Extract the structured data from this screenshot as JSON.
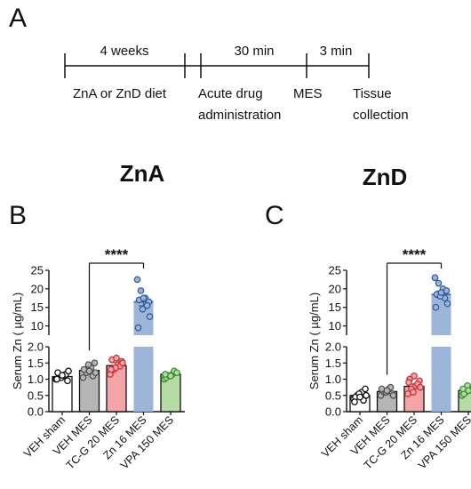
{
  "panel_labels": {
    "a": "A",
    "b": "B",
    "c": "C"
  },
  "timeline": {
    "segments": [
      {
        "duration": "4 weeks",
        "label": "ZnA or ZnD diet"
      },
      {
        "duration": "30 min",
        "label_lines": [
          "Acute drug",
          "administration"
        ]
      },
      {
        "duration": "3 min",
        "label": "MES"
      }
    ],
    "end_label_lines": [
      "Tissue",
      "collection"
    ]
  },
  "chart_data": [
    {
      "type": "bar",
      "title": "ZnA",
      "ylabel": "Serum Zn ( µg/mL)",
      "categories": [
        "VEH sham",
        "VEH MES",
        "TC-G 20 MES",
        "Zn 16 MES",
        "VPA 150 MES"
      ],
      "values": [
        1.08,
        1.27,
        1.42,
        16.5,
        1.15
      ],
      "errors": [
        0.05,
        0.08,
        0.09,
        1.1,
        0.05
      ],
      "points": [
        [
          1.0,
          1.05,
          1.1,
          0.95,
          1.2,
          1.15,
          1.05,
          1.25,
          1.0,
          1.12
        ],
        [
          1.05,
          1.2,
          1.35,
          1.5,
          1.3,
          1.1,
          1.45,
          1.2,
          1.3,
          1.25
        ],
        [
          1.15,
          1.3,
          1.45,
          1.55,
          1.6,
          1.4,
          1.35,
          1.5,
          1.3,
          1.65
        ],
        [
          22.5,
          19.5,
          17.5,
          16.5,
          17.0,
          15.5,
          14.5,
          12.5,
          9.5,
          17.5
        ],
        [
          1.0,
          1.1,
          1.15,
          1.2,
          1.05,
          1.25,
          1.1,
          1.2,
          1.15,
          1.1
        ]
      ],
      "colors": [
        "#ffffff",
        "#b5b5b5",
        "#f4a3a7",
        "#9cb5d8",
        "#b7dba5"
      ],
      "edge_colors": [
        "#111111",
        "#555555",
        "#c8323a",
        "#35609f",
        "#3e8e33"
      ],
      "yticks_lower": [
        "0.0",
        "0.5",
        "1.0",
        "1.5",
        "2.0"
      ],
      "yticks_upper": [
        "10",
        "15",
        "20",
        "25"
      ],
      "ylim_lower": [
        0,
        2
      ],
      "ylim_upper": [
        7.5,
        25
      ],
      "significance": {
        "from": 1,
        "to": 3,
        "label": "****"
      }
    },
    {
      "type": "bar",
      "title": "ZnD",
      "ylabel": "Serum Zn ( µg/mL)",
      "categories": [
        "VEH sham",
        "VEH MES",
        "TC-G 20 MES",
        "Zn 16 MES",
        "VPA 150 MES"
      ],
      "values": [
        0.5,
        0.62,
        0.78,
        18.5,
        0.65
      ],
      "errors": [
        0.04,
        0.04,
        0.07,
        0.9,
        0.05
      ],
      "points": [
        [
          0.4,
          0.5,
          0.6,
          0.7,
          0.45,
          0.35,
          0.55,
          0.5,
          0.3,
          0.45
        ],
        [
          0.5,
          0.6,
          0.7,
          0.55,
          0.65,
          0.75,
          0.6,
          0.5,
          0.7,
          0.65
        ],
        [
          0.55,
          0.7,
          0.8,
          0.95,
          1.0,
          0.85,
          0.6,
          0.75,
          0.9,
          1.1
        ],
        [
          23.0,
          21.5,
          20.0,
          19.5,
          18.5,
          17.5,
          18.0,
          16.0,
          15.0,
          19.0
        ],
        [
          0.5,
          0.6,
          0.7,
          0.75,
          0.55,
          0.65,
          0.8,
          0.6,
          0.7,
          0.65
        ]
      ],
      "colors": [
        "#ffffff",
        "#b5b5b5",
        "#f4a3a7",
        "#9cb5d8",
        "#b7dba5"
      ],
      "edge_colors": [
        "#111111",
        "#555555",
        "#c8323a",
        "#35609f",
        "#3e8e33"
      ],
      "yticks_lower": [
        "0.0",
        "0.5",
        "1.0",
        "1.5",
        "2.0"
      ],
      "yticks_upper": [
        "10",
        "15",
        "20",
        "25"
      ],
      "ylim_lower": [
        0,
        2
      ],
      "ylim_upper": [
        7.5,
        25
      ],
      "significance": {
        "from": 1,
        "to": 3,
        "label": "****"
      }
    }
  ]
}
